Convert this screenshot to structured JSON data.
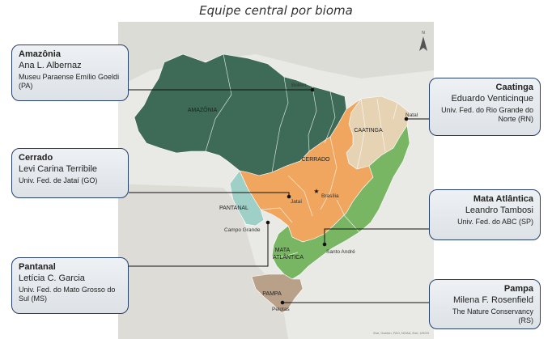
{
  "title": "Equipe central por bioma",
  "cards": {
    "amazonia": {
      "biome": "Amazônia",
      "person": "Ana L. Albernaz",
      "institution": "Museu Paraense Emílio Goeldi (PA)"
    },
    "cerrado": {
      "biome": "Cerrado",
      "person": "Levi Carina Terribile",
      "institution": "Univ. Fed. de Jataí (GO)"
    },
    "pantanal": {
      "biome": "Pantanal",
      "person": "Letícia C. Garcia",
      "institution": "Univ. Fed. do Mato Grosso do Sul (MS)"
    },
    "caatinga": {
      "biome": "Caatinga",
      "person": "Eduardo Venticinque",
      "institution": "Univ. Fed. do Rio Grande do Norte (RN)"
    },
    "mata_atlantica": {
      "biome": "Mata Atlântica",
      "person": "Leandro Tambosi",
      "institution": "Univ. Fed. do ABC (SP)"
    },
    "pampa": {
      "biome": "Pampa",
      "person": "Milena F. Rosenfield",
      "institution": "The Nature Conservancy (RS)"
    }
  },
  "map": {
    "biome_labels": {
      "amazonia": "AMAZÔNIA",
      "cerrado": "CERRADO",
      "caatinga": "CAATINGA",
      "pantanal": "PANTANAL",
      "mata_atlantica_1": "MATA",
      "mata_atlantica_2": "ATLÂNTICA",
      "pampa": "PAMPA"
    },
    "cities": {
      "belem": "Belém",
      "natal": "Natal",
      "jatai": "Jataí",
      "brasilia": "Brasília",
      "campo_grande": "Campo Grande",
      "santo_andre": "Santo André",
      "pelotas": "Pelotas"
    },
    "north_label": "N",
    "attribution": "Esri, Garmin, FAO, NOAA, Esri, USGS"
  },
  "colors": {
    "amazonia": "#3e6b57",
    "cerrado": "#f0a65f",
    "caatinga": "#e6d3b3",
    "pantanal": "#9fd0c8",
    "mata_atlantica": "#78b663",
    "pampa": "#b9a089",
    "card_border": "#27406a"
  }
}
